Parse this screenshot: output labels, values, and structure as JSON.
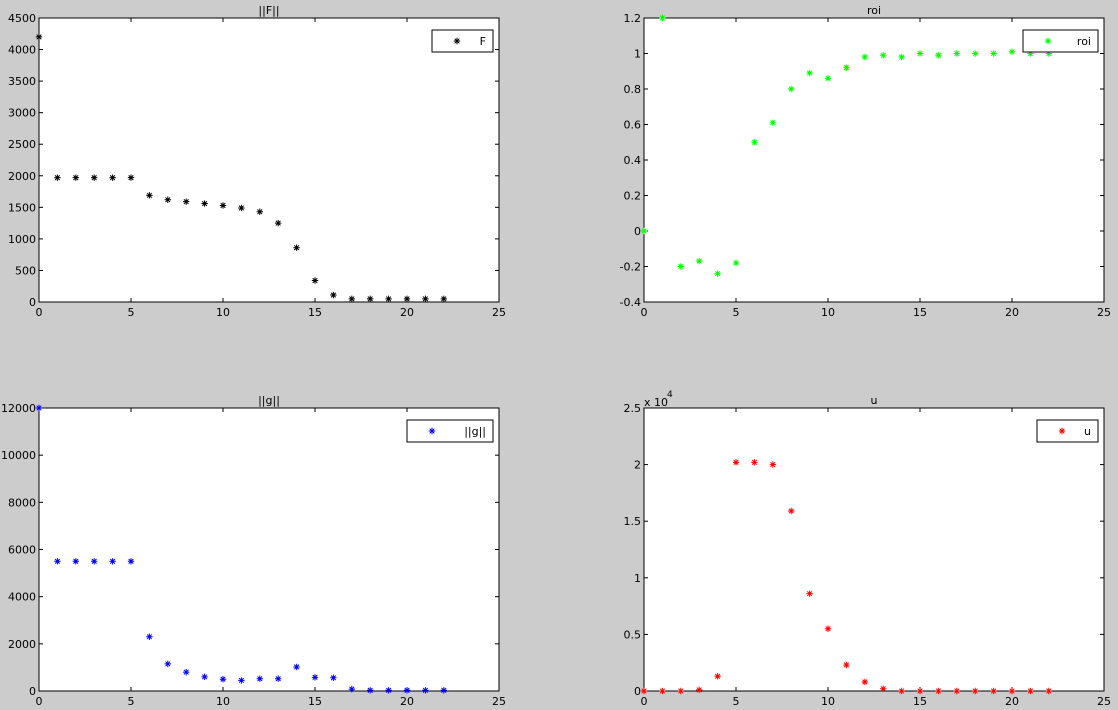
{
  "figure": {
    "background": "#cccccc",
    "axes_background": "#ffffff"
  },
  "chart_data": [
    {
      "type": "scatter",
      "title": "||F||",
      "marker": "*",
      "color": "#000000",
      "legend": {
        "label": "F",
        "position": "top-right"
      },
      "xlim": [
        0,
        25
      ],
      "ylim": [
        0,
        4500
      ],
      "xticks": [
        0,
        5,
        10,
        15,
        20,
        25
      ],
      "yticks": [
        0,
        500,
        1000,
        1500,
        2000,
        2500,
        3000,
        3500,
        4000,
        4500
      ],
      "x": [
        0,
        1,
        2,
        3,
        4,
        5,
        6,
        7,
        8,
        9,
        10,
        11,
        12,
        13,
        14,
        15,
        16,
        17,
        18,
        19,
        20,
        21,
        22
      ],
      "y": [
        4200,
        1970,
        1970,
        1970,
        1970,
        1970,
        1690,
        1620,
        1590,
        1560,
        1530,
        1490,
        1430,
        1250,
        860,
        340,
        110,
        50,
        50,
        50,
        50,
        50,
        50
      ]
    },
    {
      "type": "scatter",
      "title": "roi",
      "marker": "*",
      "color": "#00ff00",
      "legend": {
        "label": "roi",
        "position": "top-right"
      },
      "xlim": [
        0,
        25
      ],
      "ylim": [
        -0.4,
        1.2
      ],
      "xticks": [
        0,
        5,
        10,
        15,
        20,
        25
      ],
      "yticks": [
        -0.4,
        -0.2,
        0,
        0.2,
        0.4,
        0.6,
        0.8,
        1,
        1.2
      ],
      "x": [
        0,
        1,
        2,
        3,
        4,
        5,
        6,
        7,
        8,
        9,
        10,
        11,
        12,
        13,
        14,
        15,
        16,
        17,
        18,
        19,
        20,
        21,
        22
      ],
      "y": [
        0,
        1.2,
        -0.2,
        -0.17,
        -0.24,
        -0.18,
        0.5,
        0.61,
        0.8,
        0.89,
        0.86,
        0.92,
        0.98,
        0.99,
        0.98,
        1,
        0.99,
        1,
        1,
        1,
        1.01,
        1,
        1
      ]
    },
    {
      "type": "scatter",
      "title": "||g||",
      "marker": "*",
      "color": "#0000ff",
      "legend": {
        "label": "||g||",
        "position": "top-right"
      },
      "xlim": [
        0,
        25
      ],
      "ylim": [
        0,
        12000
      ],
      "xticks": [
        0,
        5,
        10,
        15,
        20,
        25
      ],
      "yticks": [
        0,
        2000,
        4000,
        6000,
        8000,
        10000,
        12000
      ],
      "x": [
        0,
        1,
        2,
        3,
        4,
        5,
        6,
        7,
        8,
        9,
        10,
        11,
        12,
        13,
        14,
        15,
        16,
        17,
        18,
        19,
        20,
        21,
        22
      ],
      "y": [
        12000,
        5500,
        5500,
        5500,
        5500,
        5500,
        2300,
        1150,
        800,
        600,
        500,
        450,
        520,
        520,
        1020,
        580,
        560,
        80,
        30,
        30,
        30,
        30,
        30
      ]
    },
    {
      "type": "scatter",
      "title": "u",
      "marker": "*",
      "color": "#ff0000",
      "legend": {
        "label": "u",
        "position": "top-right"
      },
      "y_exponent": {
        "base": "x 10",
        "power": "4"
      },
      "xlim": [
        0,
        25
      ],
      "ylim": [
        0,
        2.5
      ],
      "xticks": [
        0,
        5,
        10,
        15,
        20,
        25
      ],
      "yticks": [
        0,
        0.5,
        1,
        1.5,
        2,
        2.5
      ],
      "x": [
        0,
        1,
        2,
        3,
        4,
        5,
        6,
        7,
        8,
        9,
        10,
        11,
        12,
        13,
        14,
        15,
        16,
        17,
        18,
        19,
        20,
        21,
        22
      ],
      "y": [
        0,
        0,
        0,
        0.01,
        0.13,
        2.02,
        2.02,
        2.0,
        1.59,
        0.86,
        0.55,
        0.23,
        0.08,
        0.02,
        0,
        0,
        0,
        0,
        0,
        0,
        0,
        0,
        0
      ]
    }
  ]
}
